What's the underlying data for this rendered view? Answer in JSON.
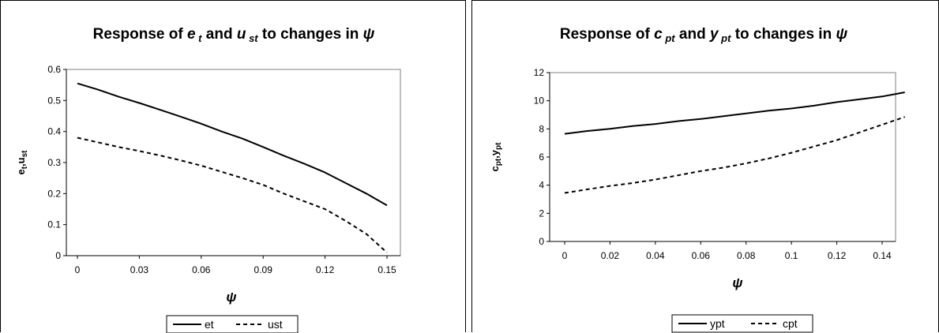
{
  "chart_data": [
    {
      "type": "line",
      "title": {
        "prefix": "Response of ",
        "sym1": "e",
        "sub1": "t",
        "mid": " and ",
        "sym2": "u",
        "sub2": "st",
        "suffix": " to changes in ",
        "sym3": "ψ"
      },
      "xlabel": "ψ",
      "ylabel": {
        "a": "e",
        "a_sub": "t",
        "sep": ",",
        "b": "u",
        "b_sub": "st"
      },
      "x_ticks": [
        "0",
        "0.03",
        "0.06",
        "0.09",
        "0.12",
        "0.15"
      ],
      "y_ticks": [
        "0",
        "0.1",
        "0.2",
        "0.3",
        "0.4",
        "0.5",
        "0.6"
      ],
      "xlim": [
        0,
        0.15
      ],
      "ylim": [
        0,
        0.6
      ],
      "grid": false,
      "legend_position": "bottom",
      "series": [
        {
          "name": "et",
          "style": "solid",
          "x": [
            0,
            0.01,
            0.02,
            0.03,
            0.04,
            0.05,
            0.06,
            0.07,
            0.08,
            0.09,
            0.1,
            0.11,
            0.12,
            0.13,
            0.14,
            0.15
          ],
          "y": [
            0.555,
            0.535,
            0.512,
            0.492,
            0.47,
            0.448,
            0.425,
            0.4,
            0.377,
            0.35,
            0.322,
            0.296,
            0.268,
            0.234,
            0.2,
            0.162
          ]
        },
        {
          "name": "ust",
          "style": "dashed",
          "x": [
            0,
            0.01,
            0.02,
            0.03,
            0.04,
            0.05,
            0.06,
            0.07,
            0.08,
            0.09,
            0.1,
            0.11,
            0.12,
            0.13,
            0.14,
            0.15
          ],
          "y": [
            0.38,
            0.365,
            0.35,
            0.337,
            0.323,
            0.307,
            0.29,
            0.27,
            0.25,
            0.228,
            0.2,
            0.175,
            0.15,
            0.112,
            0.07,
            0.01
          ]
        }
      ]
    },
    {
      "type": "line",
      "title": {
        "prefix": "Response of ",
        "sym1": "c",
        "sub1": "pt",
        "mid": " and ",
        "sym2": "y",
        "sub2": "pt",
        "suffix": " to changes in ",
        "sym3": "ψ"
      },
      "xlabel": "ψ",
      "ylabel": {
        "a": "c",
        "a_sub": "pt",
        "sep": ",",
        "b": "y",
        "b_sub": "pt"
      },
      "x_ticks": [
        "0",
        "0.02",
        "0.04",
        "0.06",
        "0.08",
        "0.1",
        "0.12",
        "0.14"
      ],
      "y_ticks": [
        "0",
        "2",
        "4",
        "6",
        "8",
        "10",
        "12"
      ],
      "xlim": [
        0,
        0.15
      ],
      "ylim": [
        0,
        12
      ],
      "grid": false,
      "legend_position": "bottom",
      "series": [
        {
          "name": "ypt",
          "style": "solid",
          "x": [
            0,
            0.01,
            0.02,
            0.03,
            0.04,
            0.05,
            0.06,
            0.07,
            0.08,
            0.09,
            0.1,
            0.11,
            0.12,
            0.13,
            0.14,
            0.15
          ],
          "y": [
            7.65,
            7.85,
            8.0,
            8.2,
            8.35,
            8.55,
            8.7,
            8.9,
            9.1,
            9.3,
            9.45,
            9.65,
            9.9,
            10.1,
            10.3,
            10.6
          ]
        },
        {
          "name": "cpt",
          "style": "dashed",
          "x": [
            0,
            0.01,
            0.02,
            0.03,
            0.04,
            0.05,
            0.06,
            0.07,
            0.08,
            0.09,
            0.1,
            0.11,
            0.12,
            0.13,
            0.14,
            0.15
          ],
          "y": [
            3.45,
            3.7,
            3.95,
            4.15,
            4.4,
            4.7,
            5.0,
            5.25,
            5.55,
            5.9,
            6.3,
            6.75,
            7.2,
            7.75,
            8.3,
            8.85
          ]
        }
      ]
    }
  ]
}
